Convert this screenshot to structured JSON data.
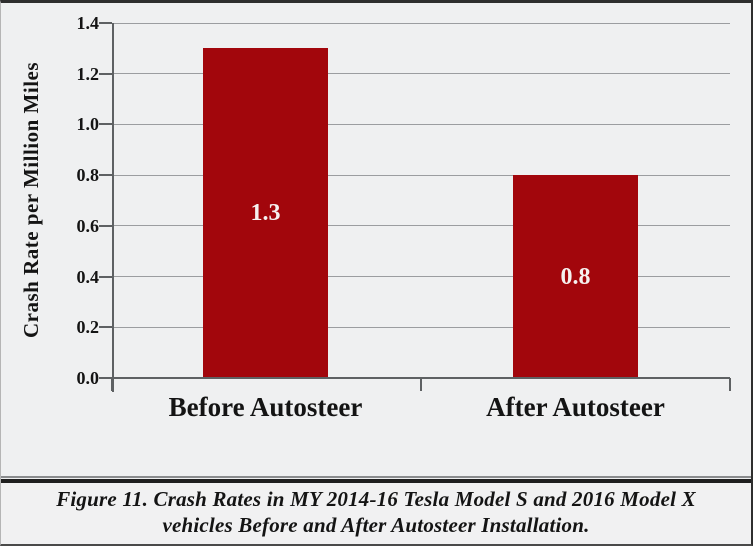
{
  "chart_data": {
    "type": "bar",
    "categories": [
      "Before Autosteer",
      "After Autosteer"
    ],
    "values": [
      1.3,
      0.8
    ],
    "bar_labels": [
      "1.3",
      "0.8"
    ],
    "title": "",
    "xlabel": "",
    "ylabel": "Crash Rate per Million Miles",
    "ylim": [
      0,
      1.4
    ],
    "yticks": [
      0.0,
      0.2,
      0.4,
      0.6,
      0.8,
      1.0,
      1.2,
      1.4
    ],
    "grid": true,
    "legend_position": "none",
    "bar_color": "#A2060C",
    "bar_label_color": "#F6F1F0"
  },
  "caption": {
    "line1": "Figure 11. Crash Rates in MY 2014-16 Tesla Model S and 2016 Model X",
    "line2": "vehicles Before and After Autosteer Installation."
  },
  "colors": {
    "chart_background": "#EFF0F1",
    "gridline": "#9B9DA0",
    "axis": "#5E6163",
    "text": "#141414",
    "separator_dark": "#1F1F1F",
    "separator_light": "#8A8C8E"
  }
}
